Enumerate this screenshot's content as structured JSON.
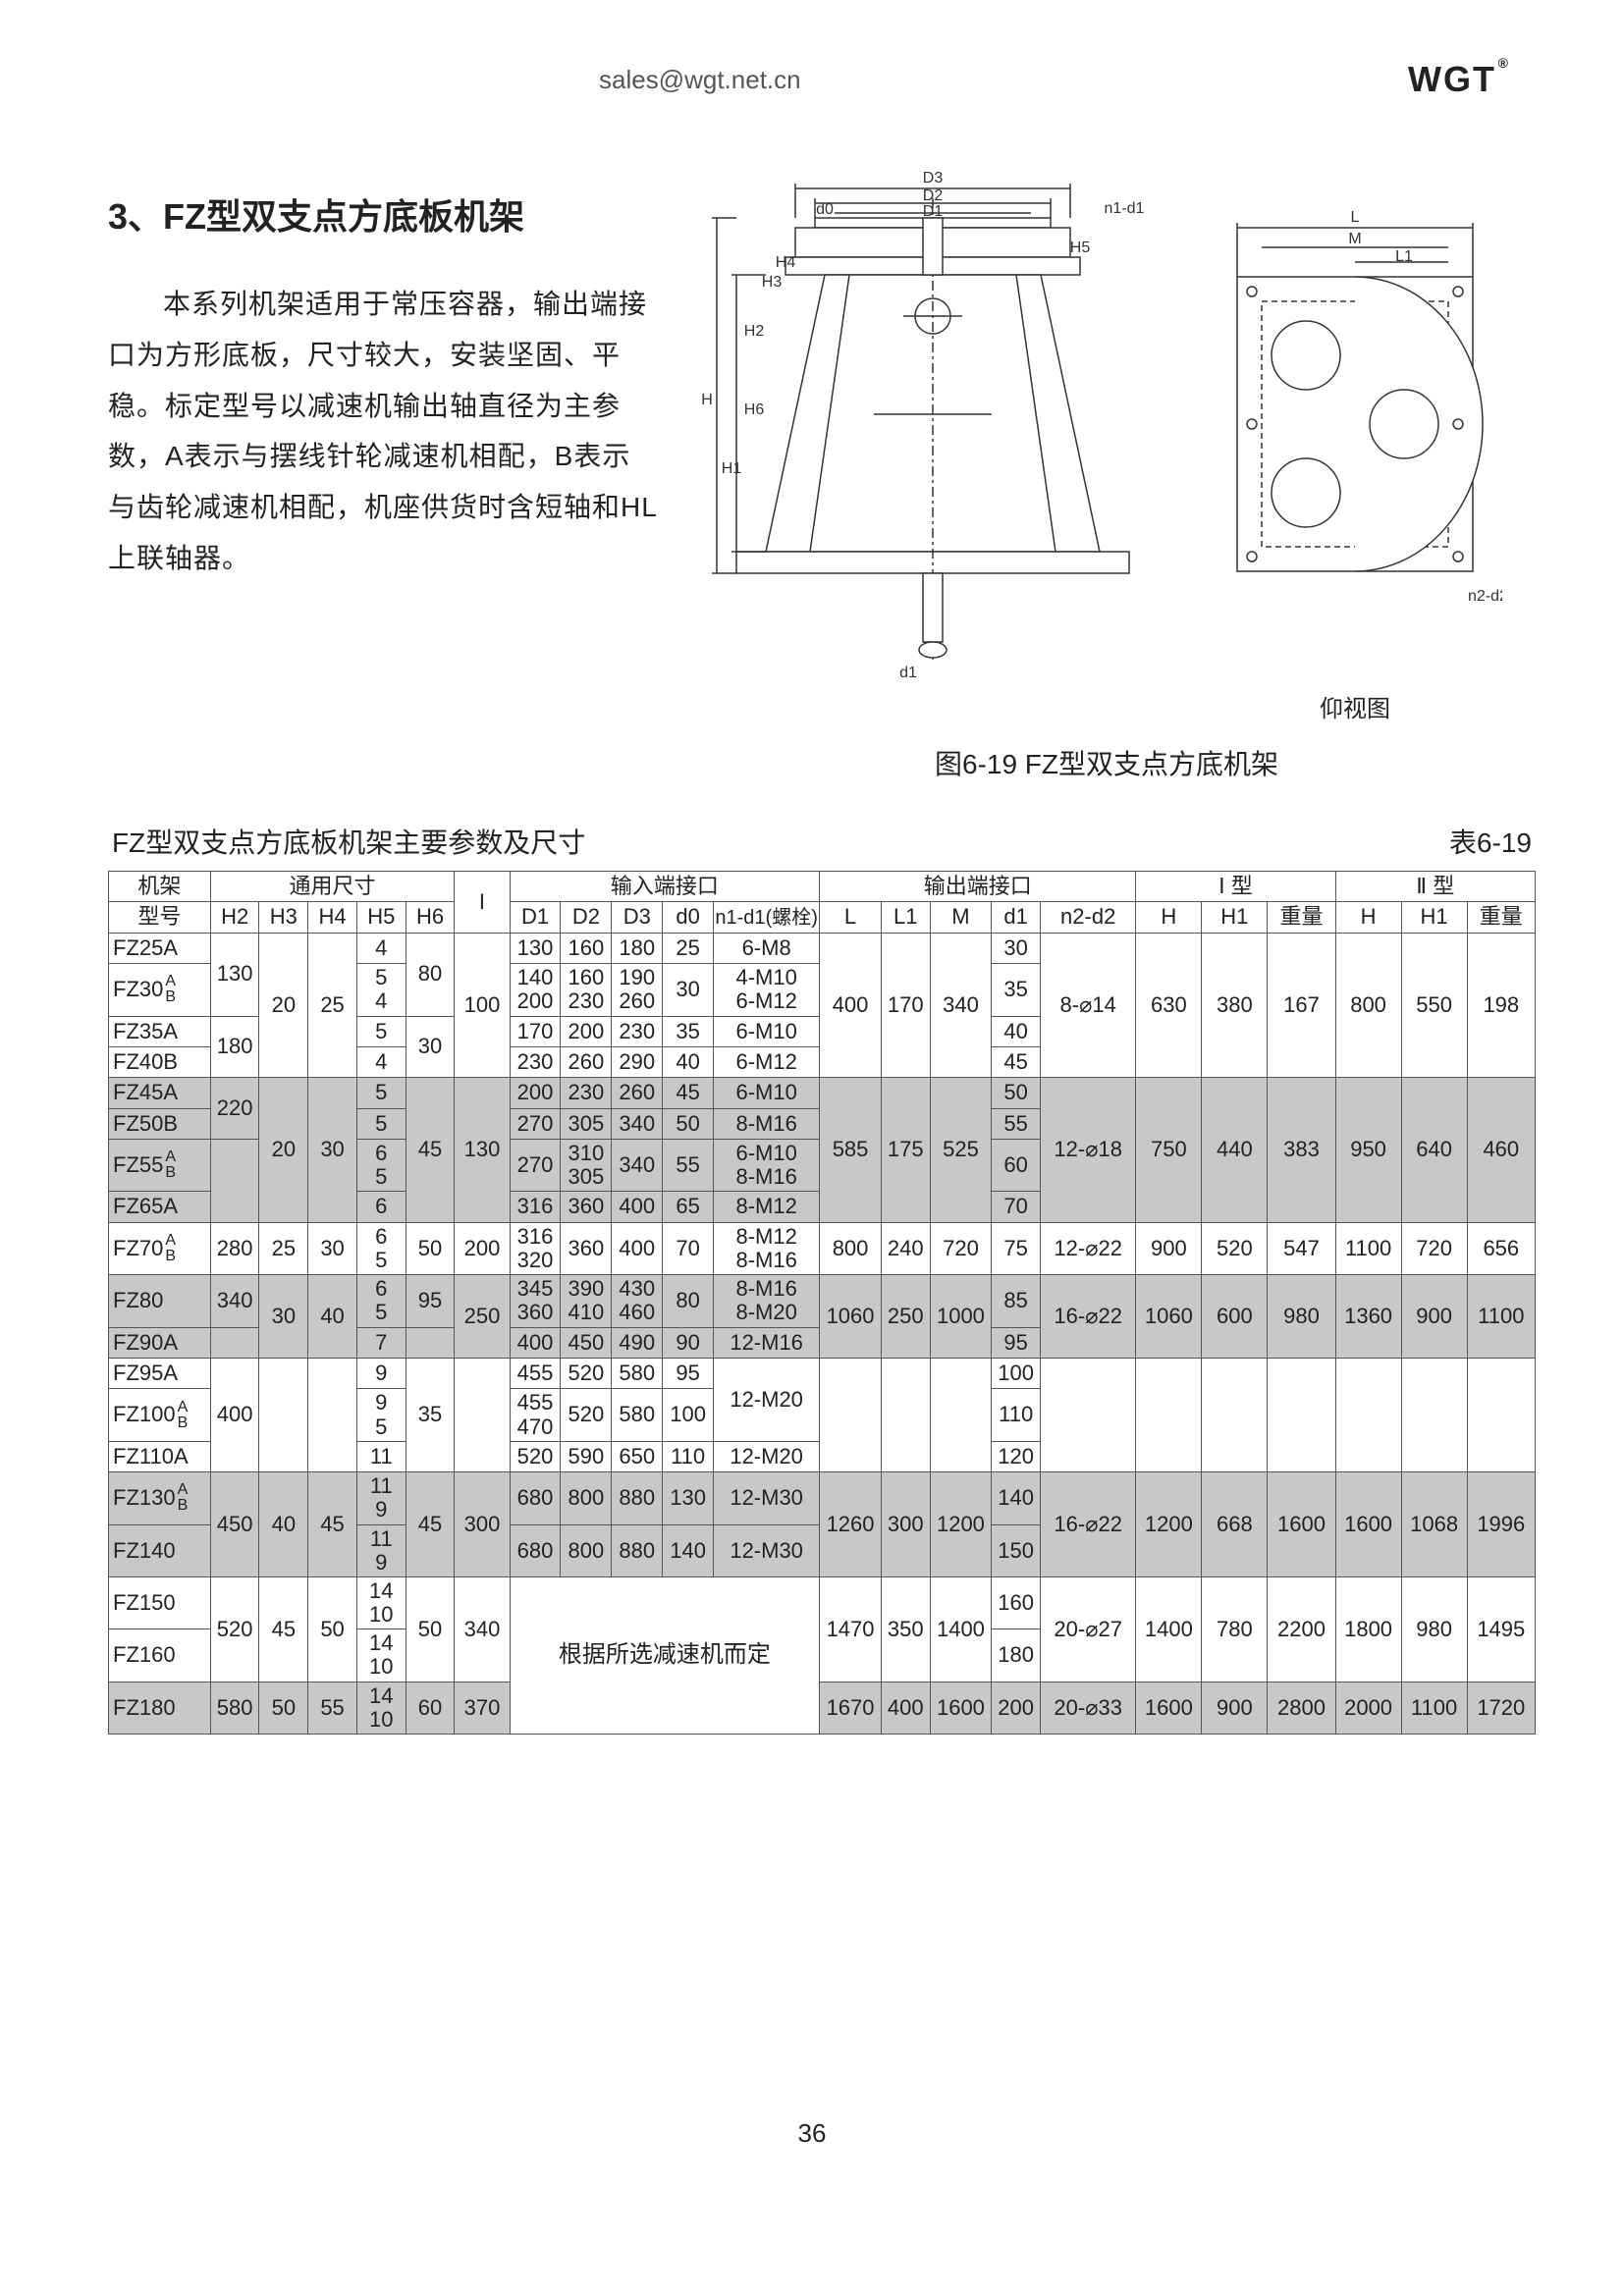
{
  "header": {
    "email": "sales@wgt.net.cn",
    "logo": "WGT"
  },
  "section": {
    "title": "3、FZ型双支点方底板机架",
    "paragraph": "本系列机架适用于常压容器，输出端接口为方形底板，尺寸较大，安装坚固、平稳。标定型号以减速机输出轴直径为主参数，A表示与摆线针轮减速机相配，B表示与齿轮减速机相配，机座供货时含短轴和HL上联轴器。"
  },
  "diagram": {
    "labels_main": [
      "D3",
      "D2",
      "D1",
      "n1-d1",
      "d0",
      "H",
      "H1",
      "H2",
      "H3",
      "H4",
      "H5",
      "H6",
      "d1"
    ],
    "labels_side": [
      "L",
      "M",
      "L1",
      "n2-d2"
    ],
    "side_caption": "仰视图"
  },
  "figure_caption": "图6-19  FZ型双支点方底机架",
  "table": {
    "title_left": "FZ型双支点方底板机架主要参数及尺寸",
    "title_right": "表6-19",
    "group_headers": [
      "机架",
      "通用尺寸",
      "输入端接口",
      "输出端接口",
      "Ⅰ 型",
      "Ⅱ 型"
    ],
    "col_headers": [
      "型号",
      "H2",
      "H3",
      "H4",
      "H5",
      "H6",
      "I",
      "D1",
      "D2",
      "D3",
      "d0",
      "n1-d1(螺栓)",
      "L",
      "L1",
      "M",
      "d1",
      "n2-d2",
      "H",
      "H1",
      "重量",
      "H",
      "H1",
      "重量"
    ],
    "note_merge": "根据所选减速机而定",
    "rows": [
      {
        "shade": false,
        "m": "FZ25A",
        "h2": "",
        "h3": "",
        "h4": "",
        "h5": "4",
        "h6": "",
        "i": "",
        "d1": "130",
        "d2": "160",
        "d3": "180",
        "d0": "25",
        "bolt": "6-M8",
        "l": "",
        "l1": "",
        "mv": "",
        "dd1": "30",
        "nd2": "",
        "H": "",
        "H1": "",
        "W": "",
        "H2": "",
        "H12": "",
        "W2": ""
      },
      {
        "shade": false,
        "m": "FZ30 A/B",
        "h2": "130",
        "h3": "",
        "h4": "",
        "h5": "5/4",
        "h6": "80",
        "i": "",
        "d1": "140/200",
        "d2": "160/230",
        "d3": "190/260",
        "d0": "30",
        "bolt": "4-M10/6-M12",
        "l": "",
        "l1": "",
        "mv": "",
        "dd1": "35",
        "nd2": "",
        "H": "",
        "H1": "",
        "W": "",
        "H2": "",
        "H12": "",
        "W2": ""
      },
      {
        "shade": false,
        "m": "FZ35A",
        "h2": "",
        "h3": "20",
        "h4": "25",
        "h5": "5",
        "h6": "",
        "i": "100",
        "d1": "170",
        "d2": "200",
        "d3": "230",
        "d0": "35",
        "bolt": "6-M10",
        "l": "400",
        "l1": "170",
        "mv": "340",
        "dd1": "40",
        "nd2": "8-⌀14",
        "H": "630",
        "H1": "380",
        "W": "167",
        "H2": "800",
        "H12": "550",
        "W2": "198"
      },
      {
        "shade": false,
        "m": "FZ40B",
        "h2": "180",
        "h3": "",
        "h4": "",
        "h5": "4",
        "h6": "30",
        "i": "",
        "d1": "230",
        "d2": "260",
        "d3": "290",
        "d0": "40",
        "bolt": "6-M12",
        "l": "",
        "l1": "",
        "mv": "",
        "dd1": "45",
        "nd2": "",
        "H": "",
        "H1": "",
        "W": "",
        "H2": "",
        "H12": "",
        "W2": ""
      },
      {
        "shade": true,
        "m": "FZ45A",
        "h2": "",
        "h3": "",
        "h4": "",
        "h5": "5",
        "h6": "",
        "i": "",
        "d1": "200",
        "d2": "230",
        "d3": "260",
        "d0": "45",
        "bolt": "6-M10",
        "l": "",
        "l1": "",
        "mv": "",
        "dd1": "50",
        "nd2": "",
        "H": "",
        "H1": "",
        "W": "",
        "H2": "",
        "H12": "",
        "W2": ""
      },
      {
        "shade": true,
        "m": "FZ50B",
        "h2": "220",
        "h3": "",
        "h4": "",
        "h5": "5",
        "h6": "45",
        "i": "130",
        "d1": "270",
        "d2": "305",
        "d3": "340",
        "d0": "50",
        "bolt": "8-M16",
        "l": "",
        "l1": "",
        "mv": "",
        "dd1": "55",
        "nd2": "",
        "H": "",
        "H1": "",
        "W": "",
        "H2": "",
        "H12": "",
        "W2": ""
      },
      {
        "shade": true,
        "m": "FZ55 A/B",
        "h2": "",
        "h3": "20",
        "h4": "30",
        "h5": "6/5",
        "h6": "",
        "i": "",
        "d1": "270",
        "d2": "310/305",
        "d3": "340",
        "d0": "55",
        "bolt": "6-M10/8-M16",
        "l": "585",
        "l1": "175",
        "mv": "525",
        "dd1": "60",
        "nd2": "12-⌀18",
        "H": "750",
        "H1": "440",
        "W": "383",
        "H2": "950",
        "H12": "640",
        "W2": "460"
      },
      {
        "shade": true,
        "m": "FZ65A",
        "h2": "",
        "h3": "",
        "h4": "",
        "h5": "6",
        "h6": "",
        "i": "",
        "d1": "316",
        "d2": "360",
        "d3": "400",
        "d0": "65",
        "bolt": "8-M12",
        "l": "",
        "l1": "",
        "mv": "",
        "dd1": "70",
        "nd2": "",
        "H": "",
        "H1": "",
        "W": "",
        "H2": "",
        "H12": "",
        "W2": ""
      },
      {
        "shade": false,
        "m": "FZ70 A/B",
        "h2": "280",
        "h3": "25",
        "h4": "30",
        "h5": "6/5",
        "h6": "50",
        "i": "200",
        "d1": "316/320",
        "d2": "360",
        "d3": "400",
        "d0": "70",
        "bolt": "8-M12/8-M16",
        "l": "800",
        "l1": "240",
        "mv": "720",
        "dd1": "75",
        "nd2": "12-⌀22",
        "H": "900",
        "H1": "520",
        "W": "547",
        "H2": "1100",
        "H12": "720",
        "W2": "656"
      },
      {
        "shade": true,
        "m": "FZ80",
        "h2": "340",
        "h3": "",
        "h4": "",
        "h5": "6/5",
        "h6": "95",
        "i": "",
        "d1": "345/360",
        "d2": "390/410",
        "d3": "430/460",
        "d0": "80",
        "bolt": "8-M16/8-M20",
        "l": "",
        "l1": "",
        "mv": "",
        "dd1": "85",
        "nd2": "",
        "H": "",
        "H1": "",
        "W": "",
        "H2": "",
        "H12": "",
        "W2": ""
      },
      {
        "shade": true,
        "m": "FZ90A",
        "h2": "",
        "h3": "30",
        "h4": "40",
        "h5": "7",
        "h6": "",
        "i": "250",
        "d1": "400",
        "d2": "450",
        "d3": "490",
        "d0": "90",
        "bolt": "12-M16",
        "l": "1060",
        "l1": "250",
        "mv": "1000",
        "dd1": "95",
        "nd2": "16-⌀22",
        "H": "1060",
        "H1": "600",
        "W": "980",
        "H2": "1360",
        "H12": "900",
        "W2": "1100"
      },
      {
        "shade": false,
        "m": "FZ95A",
        "h2": "",
        "h3": "",
        "h4": "",
        "h5": "9",
        "h6": "",
        "i": "",
        "d1": "455",
        "d2": "520",
        "d3": "580",
        "d0": "95",
        "bolt": "",
        "l": "",
        "l1": "",
        "mv": "",
        "dd1": "100",
        "nd2": "",
        "H": "",
        "H1": "",
        "W": "",
        "H2": "",
        "H12": "",
        "W2": ""
      },
      {
        "shade": false,
        "m": "FZ100 A/B",
        "h2": "400",
        "h3": "",
        "h4": "",
        "h5": "9/5",
        "h6": "35",
        "i": "",
        "d1": "455/470",
        "d2": "520",
        "d3": "580",
        "d0": "100",
        "bolt": "12-M20",
        "l": "",
        "l1": "",
        "mv": "",
        "dd1": "110",
        "nd2": "",
        "H": "",
        "H1": "",
        "W": "",
        "H2": "",
        "H12": "",
        "W2": ""
      },
      {
        "shade": false,
        "m": "FZ110A",
        "h2": "",
        "h3": "",
        "h4": "",
        "h5": "11",
        "h6": "",
        "i": "",
        "d1": "520",
        "d2": "590",
        "d3": "650",
        "d0": "110",
        "bolt": "12-M20",
        "l": "",
        "l1": "",
        "mv": "",
        "dd1": "120",
        "nd2": "",
        "H": "",
        "H1": "",
        "W": "",
        "H2": "",
        "H12": "",
        "W2": ""
      },
      {
        "shade": true,
        "m": "FZ130 A/B",
        "h2": "450",
        "h3": "40",
        "h4": "45",
        "h5": "11/9",
        "h6": "45",
        "i": "300",
        "d1": "680",
        "d2": "800",
        "d3": "880",
        "d0": "130",
        "bolt": "12-M30",
        "l": "1260",
        "l1": "300",
        "mv": "1200",
        "dd1": "140",
        "nd2": "16-⌀22",
        "H": "1200",
        "H1": "668",
        "W": "1600",
        "H2": "1600",
        "H12": "1068",
        "W2": "1996"
      },
      {
        "shade": true,
        "m": "FZ140",
        "h2": "",
        "h3": "",
        "h4": "",
        "h5": "11/9",
        "h6": "",
        "i": "",
        "d1": "680",
        "d2": "800",
        "d3": "880",
        "d0": "140",
        "bolt": "12-M30",
        "l": "",
        "l1": "",
        "mv": "",
        "dd1": "150",
        "nd2": "",
        "H": "",
        "H1": "",
        "W": "",
        "H2": "",
        "H12": "",
        "W2": ""
      },
      {
        "shade": false,
        "m": "FZ150",
        "h2": "",
        "h3": "",
        "h4": "",
        "h5": "14/10",
        "h6": "",
        "i": "",
        "d1": "",
        "d2": "",
        "d3": "",
        "d0": "",
        "bolt": "",
        "l": "",
        "l1": "",
        "mv": "",
        "dd1": "160",
        "nd2": "",
        "H": "",
        "H1": "",
        "W": "",
        "H2": "",
        "H12": "",
        "W2": ""
      },
      {
        "shade": false,
        "m": "FZ160",
        "h2": "520",
        "h3": "45",
        "h4": "50",
        "h5": "14/10",
        "h6": "50",
        "i": "340",
        "d1": "",
        "d2": "",
        "d3": "",
        "d0": "",
        "bolt": "",
        "l": "1470",
        "l1": "350",
        "mv": "1400",
        "dd1": "180",
        "nd2": "20-⌀27",
        "H": "1400",
        "H1": "780",
        "W": "2200",
        "H2": "1800",
        "H12": "980",
        "W2": "1495"
      },
      {
        "shade": true,
        "m": "FZ180",
        "h2": "580",
        "h3": "50",
        "h4": "55",
        "h5": "14/10",
        "h6": "60",
        "i": "370",
        "d1": "",
        "d2": "",
        "d3": "",
        "d0": "",
        "bolt": "",
        "l": "1670",
        "l1": "400",
        "mv": "1600",
        "dd1": "200",
        "nd2": "20-⌀33",
        "H": "1600",
        "H1": "900",
        "W": "2800",
        "H2": "2000",
        "H12": "1100",
        "W2": "1720"
      }
    ]
  },
  "page_number": "36"
}
